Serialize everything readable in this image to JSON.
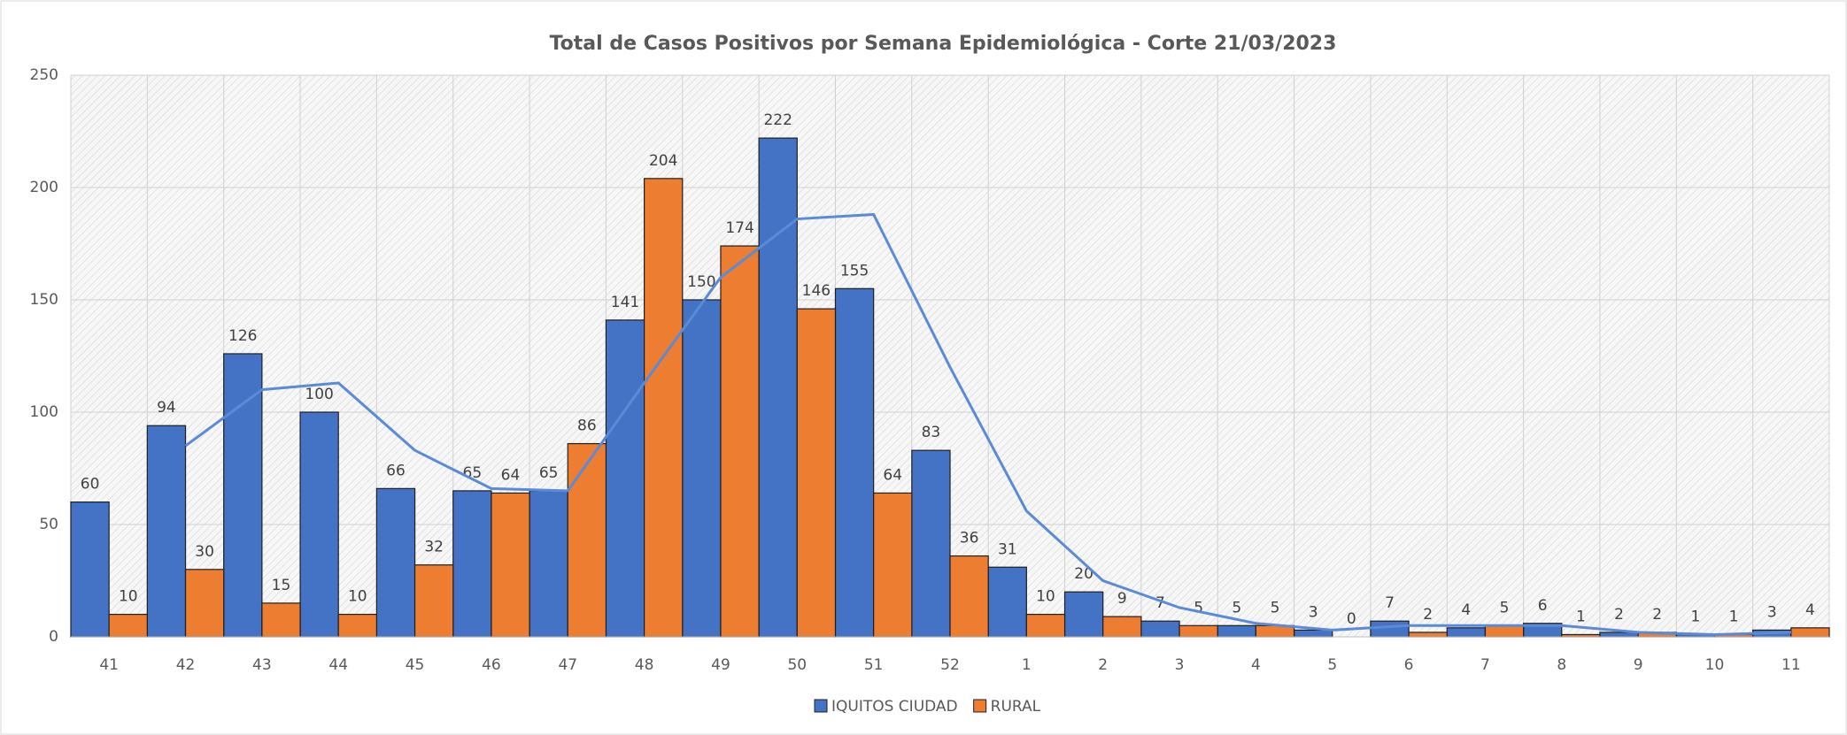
{
  "chart_data": {
    "type": "bar",
    "title": "Total de Casos Positivos por Semana Epidemiológica - Corte 21/03/2023",
    "categories": [
      "41",
      "42",
      "43",
      "44",
      "45",
      "46",
      "47",
      "48",
      "49",
      "50",
      "51",
      "52",
      "1",
      "2",
      "3",
      "4",
      "5",
      "6",
      "7",
      "8",
      "9",
      "10",
      "11"
    ],
    "series": [
      {
        "name": "IQUITOS CIUDAD",
        "color": "#4472c4",
        "values": [
          60,
          94,
          126,
          100,
          66,
          65,
          65,
          141,
          150,
          222,
          155,
          83,
          31,
          20,
          7,
          5,
          3,
          7,
          4,
          6,
          2,
          1,
          3
        ]
      },
      {
        "name": "RURAL",
        "color": "#ed7d31",
        "values": [
          10,
          30,
          15,
          10,
          32,
          64,
          86,
          204,
          174,
          146,
          64,
          36,
          10,
          9,
          5,
          5,
          0,
          2,
          5,
          1,
          2,
          1,
          4
        ]
      }
    ],
    "trendline": {
      "color": "#5b8bd6",
      "values": [
        null,
        85,
        110,
        113,
        83,
        66,
        65,
        113,
        160,
        186,
        188,
        120,
        56,
        25,
        13,
        6,
        3,
        5,
        5,
        5,
        2,
        1,
        2
      ]
    },
    "ylim": [
      0,
      250
    ],
    "yticks": [
      0,
      50,
      100,
      150,
      200,
      250
    ],
    "grid": true,
    "legend": "bottom"
  }
}
